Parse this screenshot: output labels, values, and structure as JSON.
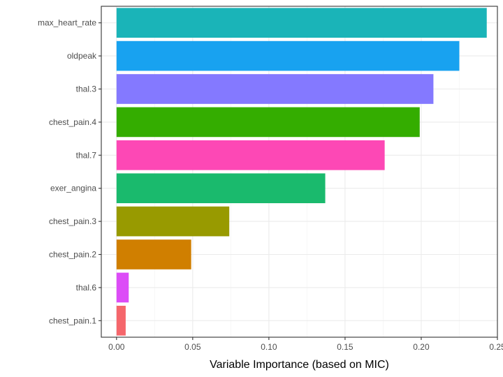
{
  "chart_data": {
    "type": "bar",
    "orientation": "horizontal",
    "categories": [
      "max_heart_rate",
      "oldpeak",
      "thal.3",
      "chest_pain.4",
      "thal.7",
      "exer_angina",
      "chest_pain.3",
      "chest_pain.2",
      "thal.6",
      "chest_pain.1"
    ],
    "values": [
      0.243,
      0.225,
      0.208,
      0.199,
      0.176,
      0.137,
      0.074,
      0.049,
      0.008,
      0.006
    ],
    "colors": [
      "#1ab4b8",
      "#18a2f0",
      "#8479ff",
      "#34ad00",
      "#fd48b5",
      "#1aba6d",
      "#989a00",
      "#d07f00",
      "#dc4cf7",
      "#f5666b"
    ],
    "xlabel": "Variable Importance (based on MIC)",
    "ylabel": "",
    "title": "",
    "xlim": [
      -0.01,
      0.25
    ],
    "xticks": [
      0.0,
      0.05,
      0.1,
      0.15,
      0.2,
      0.25
    ],
    "xtick_labels": [
      "0.00",
      "0.05",
      "0.10",
      "0.15",
      "0.20",
      "0.25"
    ],
    "grid": true,
    "legend": "none"
  }
}
